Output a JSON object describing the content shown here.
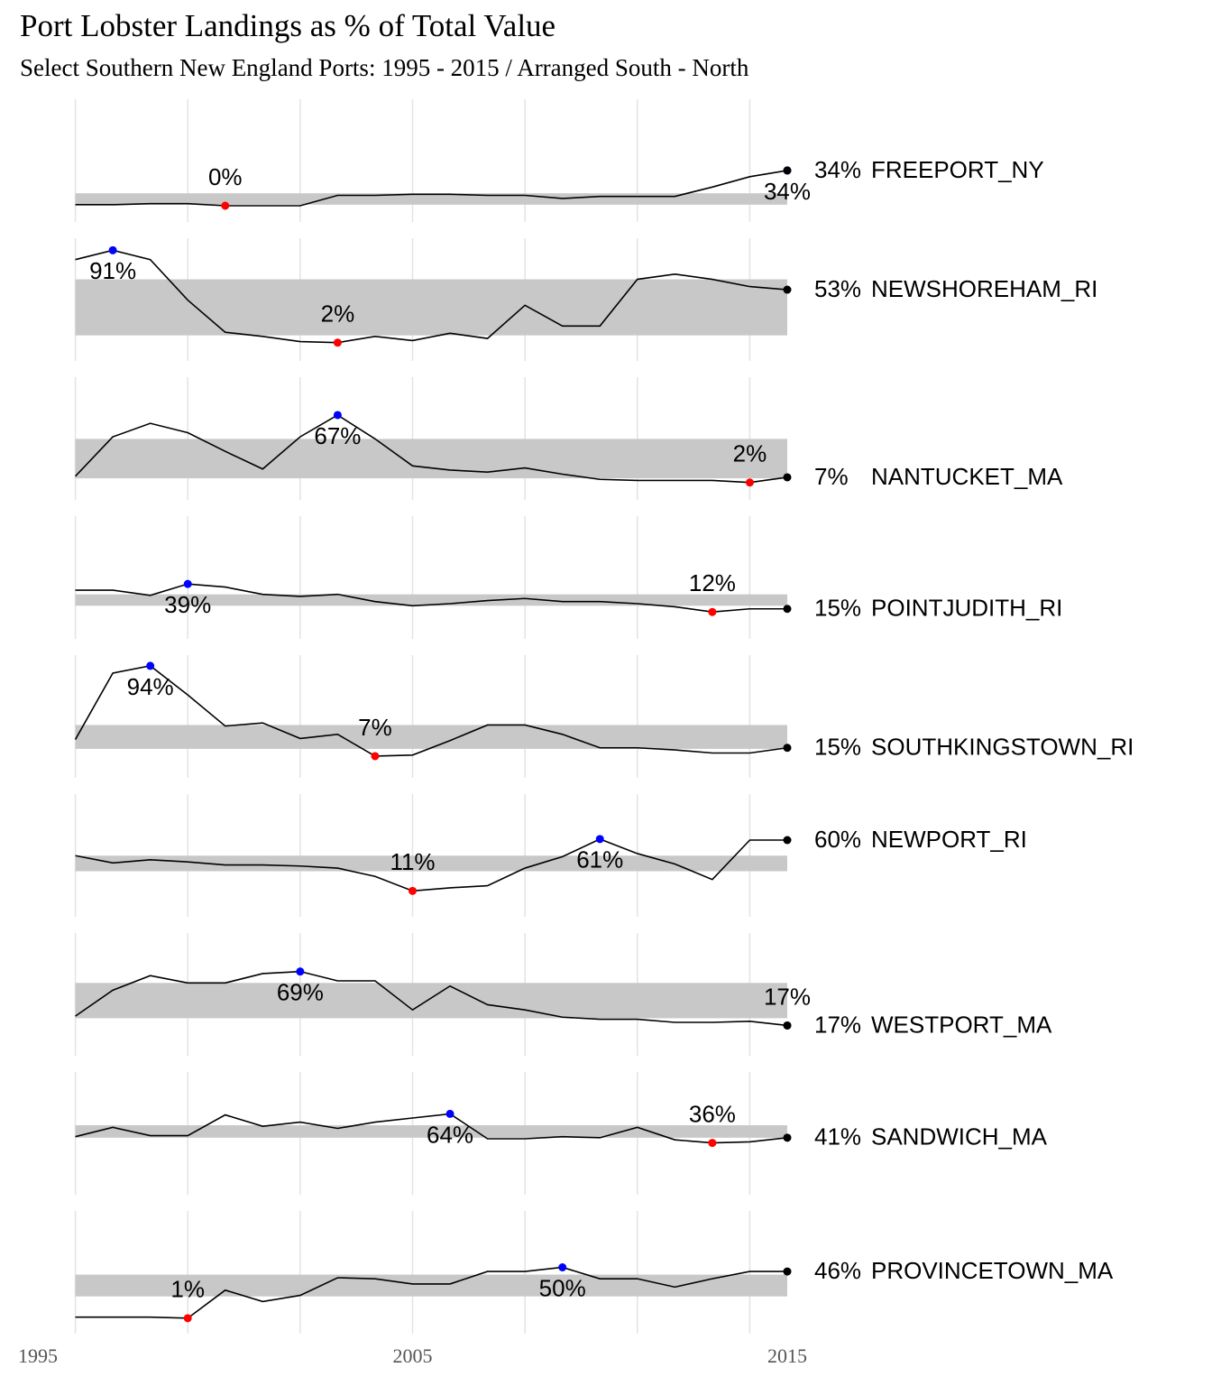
{
  "chart_data": {
    "type": "line",
    "title": "Port Lobster Landings as % of Total Value",
    "subtitle": "Select Southern New England Ports: 1995 - 2015 / Arranged South - North",
    "x": [
      1996,
      1997,
      1998,
      1999,
      2000,
      2001,
      2002,
      2003,
      2004,
      2005,
      2006,
      2007,
      2008,
      2009,
      2010,
      2011,
      2012,
      2013,
      2014,
      2015
    ],
    "xlim": [
      1995,
      2015
    ],
    "xticks": [
      1995,
      2005,
      2015
    ],
    "xgrid": [
      1996,
      1999,
      2002,
      2005,
      2008,
      2011,
      2014
    ],
    "line_color": "#000000",
    "band_color": "#c8c8c8",
    "min_color": "#ff0000",
    "max_color": "#0000ff",
    "end_color": "#000000",
    "panels": [
      {
        "name": "FREEPORT_NY",
        "end_label": "34%",
        "values": [
          1,
          1,
          2,
          2,
          0,
          0,
          0,
          10,
          10,
          11,
          11,
          10,
          10,
          7,
          9,
          9,
          9,
          18,
          28,
          34
        ],
        "value_labels": [
          null,
          null,
          null,
          null,
          "0%",
          null,
          null,
          null,
          null,
          null,
          null,
          null,
          null,
          null,
          null,
          null,
          null,
          null,
          null,
          "34%"
        ],
        "band": [
          1,
          12
        ]
      },
      {
        "name": "NEWSHOREHAM_RI",
        "end_label": "53%",
        "values": [
          82,
          91,
          82,
          43,
          12,
          8,
          3,
          2,
          8,
          4,
          11,
          6,
          38,
          18,
          18,
          63,
          68,
          63,
          56,
          53
        ],
        "value_labels": [
          null,
          "91%",
          null,
          null,
          null,
          null,
          null,
          "2%",
          null,
          null,
          null,
          null,
          null,
          null,
          null,
          null,
          null,
          null,
          null,
          null
        ],
        "band": [
          9,
          63
        ]
      },
      {
        "name": "NANTUCKET_MA",
        "end_label": "7%",
        "values": [
          8,
          46,
          59,
          50,
          32,
          15,
          46,
          67,
          44,
          18,
          14,
          12,
          16,
          10,
          5,
          4,
          4,
          4,
          2,
          7
        ],
        "value_labels": [
          null,
          null,
          null,
          null,
          null,
          null,
          null,
          "67%",
          null,
          null,
          null,
          null,
          null,
          null,
          null,
          null,
          null,
          null,
          "2%",
          null
        ],
        "band": [
          6,
          44
        ]
      },
      {
        "name": "POINTJUDITH_RI",
        "end_label": "15%",
        "values": [
          33,
          33,
          28,
          39,
          36,
          29,
          27,
          29,
          22,
          18,
          20,
          23,
          25,
          22,
          22,
          20,
          17,
          12,
          15,
          15
        ],
        "value_labels": [
          null,
          null,
          null,
          "39%",
          null,
          null,
          null,
          null,
          null,
          null,
          null,
          null,
          null,
          null,
          null,
          null,
          null,
          "12%",
          null,
          null
        ],
        "band": [
          18,
          29
        ]
      },
      {
        "name": "SOUTHKINGSTOWN_RI",
        "end_label": "15%",
        "values": [
          23,
          87,
          94,
          66,
          36,
          39,
          24,
          28,
          7,
          8,
          22,
          37,
          37,
          28,
          15,
          15,
          13,
          10,
          10,
          15
        ],
        "value_labels": [
          null,
          null,
          "94%",
          null,
          null,
          null,
          null,
          null,
          "7%",
          null,
          null,
          null,
          null,
          null,
          null,
          null,
          null,
          null,
          null,
          null
        ],
        "band": [
          14,
          37
        ]
      },
      {
        "name": "NEWPORT_RI",
        "end_label": "60%",
        "values": [
          45,
          38,
          41,
          39,
          36,
          36,
          35,
          33,
          25,
          11,
          14,
          16,
          33,
          44,
          61,
          47,
          37,
          22,
          60,
          60
        ],
        "value_labels": [
          null,
          null,
          null,
          null,
          null,
          null,
          null,
          null,
          null,
          "11%",
          null,
          null,
          null,
          null,
          "61%",
          null,
          null,
          null,
          null,
          null
        ],
        "band": [
          30,
          45
        ]
      },
      {
        "name": "WESTPORT_MA",
        "end_label": "17%",
        "values": [
          26,
          51,
          65,
          58,
          58,
          67,
          69,
          60,
          60,
          32,
          55,
          37,
          32,
          25,
          23,
          23,
          20,
          20,
          21,
          17
        ],
        "value_labels": [
          null,
          null,
          null,
          null,
          null,
          null,
          "69%",
          null,
          null,
          null,
          null,
          null,
          null,
          null,
          null,
          null,
          null,
          null,
          null,
          "17%"
        ],
        "band": [
          24,
          58
        ]
      },
      {
        "name": "SANDWICH_MA",
        "end_label": "41%",
        "values": [
          42,
          51,
          43,
          43,
          63,
          52,
          56,
          50,
          56,
          60,
          64,
          40,
          40,
          42,
          41,
          51,
          39,
          36,
          37,
          41
        ],
        "value_labels": [
          null,
          null,
          null,
          null,
          null,
          null,
          null,
          null,
          null,
          null,
          "64%",
          null,
          null,
          null,
          null,
          null,
          null,
          "36%",
          null,
          null
        ],
        "band": [
          41,
          53
        ]
      },
      {
        "name": "PROVINCETOWN_MA",
        "end_label": "46%",
        "values": [
          2,
          2,
          2,
          1,
          28,
          17,
          23,
          40,
          39,
          34,
          34,
          46,
          46,
          50,
          39,
          39,
          31,
          39,
          46,
          46
        ],
        "value_labels": [
          null,
          null,
          null,
          "1%",
          null,
          null,
          null,
          null,
          null,
          null,
          null,
          null,
          null,
          "50%",
          null,
          null,
          null,
          null,
          null,
          null
        ],
        "band": [
          22,
          43
        ]
      }
    ]
  }
}
